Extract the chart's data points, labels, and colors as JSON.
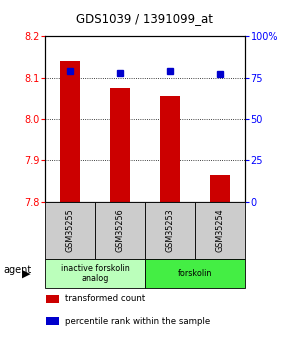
{
  "title": "GDS1039 / 1391099_at",
  "samples": [
    "GSM35255",
    "GSM35256",
    "GSM35253",
    "GSM35254"
  ],
  "bar_values": [
    8.14,
    8.075,
    8.055,
    7.865
  ],
  "percentile_values": [
    79,
    78,
    79,
    77
  ],
  "ylim_left": [
    7.8,
    8.2
  ],
  "ylim_right": [
    0,
    100
  ],
  "yticks_left": [
    7.8,
    7.9,
    8.0,
    8.1,
    8.2
  ],
  "yticks_right": [
    0,
    25,
    50,
    75,
    100
  ],
  "ytick_labels_right": [
    "0",
    "25",
    "50",
    "75",
    "100%"
  ],
  "bar_color": "#cc0000",
  "percentile_color": "#0000cc",
  "agent_groups": [
    {
      "label": "inactive forskolin\nanalog",
      "span": [
        0,
        2
      ],
      "color": "#bbffbb"
    },
    {
      "label": "forskolin",
      "span": [
        2,
        4
      ],
      "color": "#44ee44"
    }
  ],
  "legend_items": [
    {
      "label": "transformed count",
      "color": "#cc0000"
    },
    {
      "label": "percentile rank within the sample",
      "color": "#0000cc"
    }
  ],
  "bar_width": 0.4,
  "base_value": 7.8,
  "background_color": "#ffffff",
  "plot_bg_color": "#ffffff",
  "sample_box_color": "#cccccc"
}
